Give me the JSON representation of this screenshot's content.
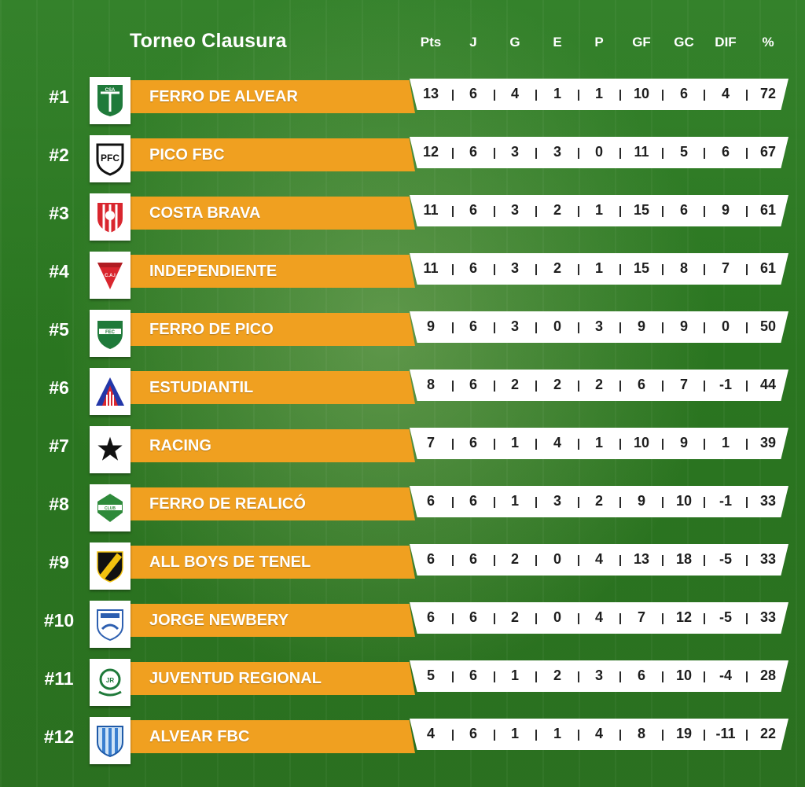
{
  "title": "Torneo Clausura",
  "columns": [
    "Pts",
    "J",
    "G",
    "E",
    "P",
    "GF",
    "GC",
    "DIF",
    "%"
  ],
  "colors": {
    "bar": "#f0a020",
    "stats_bg": "#ffffff",
    "background": "#2f7a26"
  },
  "teams": [
    {
      "rank": "#1",
      "name": "FERRO DE ALVEAR",
      "icon": "ferro-alvear-crest-icon",
      "stats": [
        "13",
        "6",
        "4",
        "1",
        "1",
        "10",
        "6",
        "4",
        "72"
      ]
    },
    {
      "rank": "#2",
      "name": "PICO FBC",
      "icon": "pico-fbc-crest-icon",
      "stats": [
        "12",
        "6",
        "3",
        "3",
        "0",
        "11",
        "5",
        "6",
        "67"
      ]
    },
    {
      "rank": "#3",
      "name": "COSTA BRAVA",
      "icon": "costa-brava-crest-icon",
      "stats": [
        "11",
        "6",
        "3",
        "2",
        "1",
        "15",
        "6",
        "9",
        "61"
      ]
    },
    {
      "rank": "#4",
      "name": "INDEPENDIENTE",
      "icon": "independiente-crest-icon",
      "stats": [
        "11",
        "6",
        "3",
        "2",
        "1",
        "15",
        "8",
        "7",
        "61"
      ]
    },
    {
      "rank": "#5",
      "name": "FERRO DE PICO",
      "icon": "ferro-pico-crest-icon",
      "stats": [
        "9",
        "6",
        "3",
        "0",
        "3",
        "9",
        "9",
        "0",
        "50"
      ]
    },
    {
      "rank": "#6",
      "name": "ESTUDIANTIL",
      "icon": "estudiantil-crest-icon",
      "stats": [
        "8",
        "6",
        "2",
        "2",
        "2",
        "6",
        "7",
        "-1",
        "44"
      ]
    },
    {
      "rank": "#7",
      "name": "RACING",
      "icon": "racing-star-crest-icon",
      "stats": [
        "7",
        "6",
        "1",
        "4",
        "1",
        "10",
        "9",
        "1",
        "39"
      ]
    },
    {
      "rank": "#8",
      "name": "FERRO DE REALICÓ",
      "icon": "ferro-realico-crest-icon",
      "stats": [
        "6",
        "6",
        "1",
        "3",
        "2",
        "9",
        "10",
        "-1",
        "33"
      ]
    },
    {
      "rank": "#9",
      "name": "ALL BOYS DE TENEL",
      "icon": "all-boys-crest-icon",
      "stats": [
        "6",
        "6",
        "2",
        "0",
        "4",
        "13",
        "18",
        "-5",
        "33"
      ]
    },
    {
      "rank": "#10",
      "name": "JORGE NEWBERY",
      "icon": "jorge-newbery-crest-icon",
      "stats": [
        "6",
        "6",
        "2",
        "0",
        "4",
        "7",
        "12",
        "-5",
        "33"
      ]
    },
    {
      "rank": "#11",
      "name": "JUVENTUD REGIONAL",
      "icon": "juventud-regional-crest-icon",
      "stats": [
        "5",
        "6",
        "1",
        "2",
        "3",
        "6",
        "10",
        "-4",
        "28"
      ]
    },
    {
      "rank": "#12",
      "name": "ALVEAR FBC",
      "icon": "alvear-fbc-crest-icon",
      "stats": [
        "4",
        "6",
        "1",
        "1",
        "4",
        "8",
        "19",
        "-11",
        "22"
      ]
    }
  ]
}
